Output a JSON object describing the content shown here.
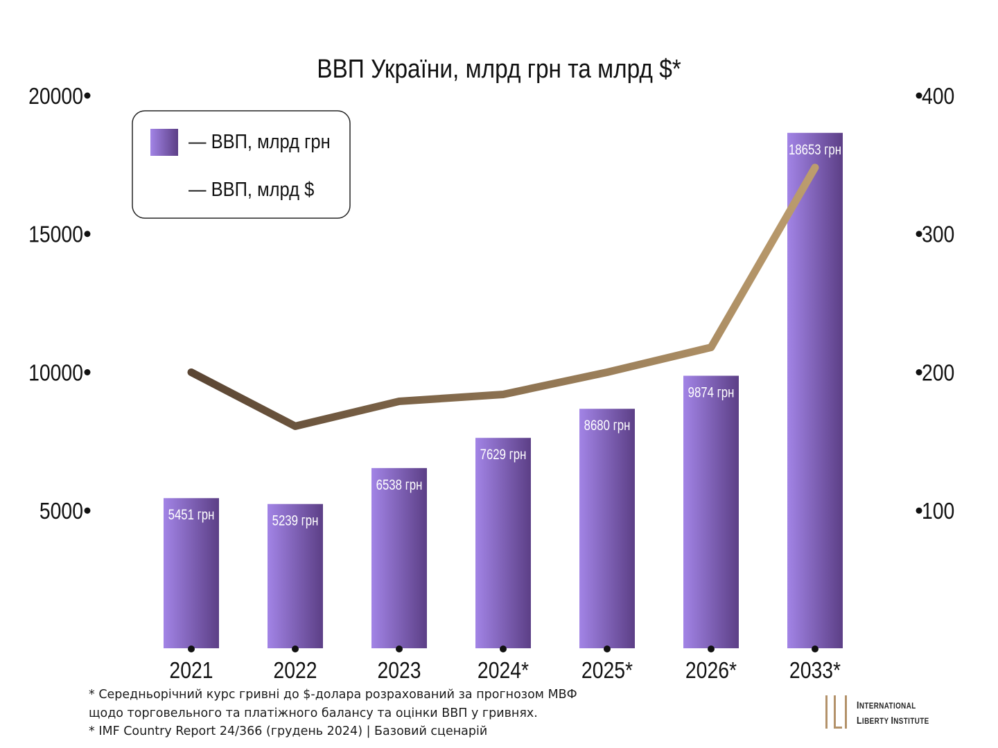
{
  "chart_data": {
    "type": "bar",
    "title": "ВВП України, млрд грн та млрд $*",
    "categories": [
      "2021",
      "2022",
      "2023",
      "2024*",
      "2025*",
      "2026*",
      "2033*"
    ],
    "series": [
      {
        "name": "ВВП, млрд грн",
        "type": "bar",
        "axis": "left",
        "values": [
          5451,
          5239,
          6538,
          7629,
          8680,
          9874,
          18653
        ],
        "labels": [
          "5451 грн",
          "5239 грн",
          "6538 грн",
          "7629 грн",
          "8680 грн",
          "9874 грн",
          "18653 грн"
        ]
      },
      {
        "name": "ВВП, млрд $",
        "type": "line",
        "axis": "right",
        "values": [
          200,
          161,
          179,
          184,
          200,
          218,
          348
        ]
      }
    ],
    "y_left": {
      "min": 0,
      "max": 20000,
      "ticks": [
        "5000",
        "10000",
        "15000",
        "20000"
      ]
    },
    "y_right": {
      "min": 0,
      "max": 400,
      "ticks": [
        "100",
        "200",
        "300",
        "400"
      ]
    },
    "legend_position": "top-left",
    "grid": false,
    "colors": {
      "bar_light": "#9b7fdd",
      "bar_dark": "#5a4080",
      "line_start": "#5e4b3a",
      "line_end": "#b89a6c",
      "axis_left": "#8a6fcc",
      "axis_right": "#a08e72",
      "axis_bottom": "#6a5a78"
    }
  },
  "footnotes": [
    "* Середньорічний курс гривні до $-долара розрахований за прогнозом МВФ",
    "щодо торговельного та платіжного балансу та оцінки ВВП у гривнях.",
    "* IMF Country Report 24/366 (грудень 2024)  |  Базовий сценарій"
  ],
  "logo": {
    "line1_cap": "I",
    "line1_rest": "NTERNATIONAL",
    "line2_cap1": "L",
    "line2_rest1": "IBERTY ",
    "line2_cap2": "I",
    "line2_rest2": "NSTITUTE"
  }
}
